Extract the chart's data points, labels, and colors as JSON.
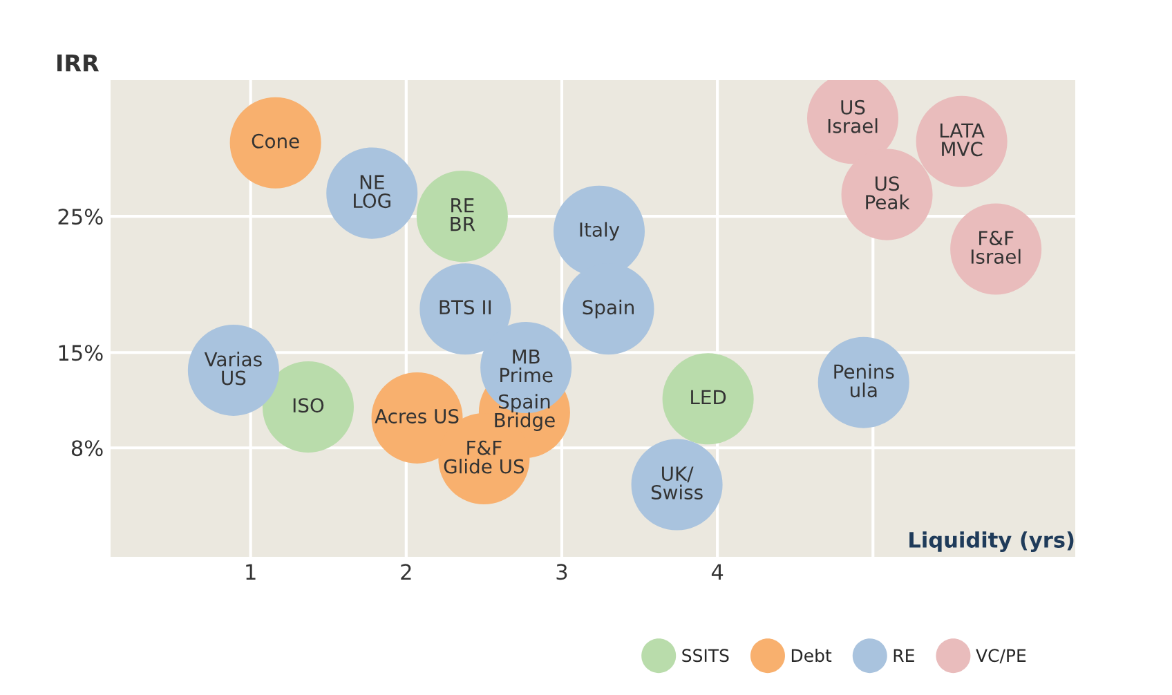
{
  "chart_data": {
    "type": "bubble",
    "ylabel": "IRR",
    "xlabel": "Liquidity (yrs)",
    "xlim": [
      0.1,
      6.3
    ],
    "xticks": [
      1,
      2,
      3,
      4,
      {
        "value": 5,
        "label": null
      }
    ],
    "ylim": [
      0,
      35
    ],
    "yticks": [
      {
        "value": 8,
        "label": "8%"
      },
      {
        "value": 15,
        "label": "15%"
      },
      {
        "value": 25,
        "label": "25%"
      }
    ],
    "grid": true,
    "legend": "bottom",
    "series": [
      {
        "name": "SSITS",
        "color": "#b9dcab",
        "x": [
          2.36,
          1.37,
          3.94
        ],
        "values": [
          25,
          11.0,
          11.6
        ],
        "sizes": [
          1,
          1,
          1
        ]
      },
      {
        "name": "Debt",
        "color": "#f8b06e",
        "x": [
          1.16,
          2.07,
          2.76,
          2.5
        ],
        "values": [
          30.4,
          10.2,
          10.6,
          7.2
        ],
        "sizes": [
          1,
          1,
          1,
          1
        ]
      },
      {
        "name": "RE",
        "color": "#a9c3de",
        "x": [
          1.78,
          3.24,
          2.38,
          3.3,
          0.89,
          2.77,
          3.74,
          4.94
        ],
        "values": [
          26.7,
          23.9,
          18.2,
          18.2,
          13.7,
          13.9,
          5.3,
          12.8
        ],
        "sizes": [
          1,
          1,
          1,
          1,
          1,
          1,
          1,
          1
        ]
      },
      {
        "name": "VC/PE",
        "color": "#e9bcbc",
        "x": [
          4.87,
          5.57,
          5.09,
          5.79
        ],
        "values": [
          32.2,
          30.5,
          26.6,
          22.6
        ],
        "sizes": [
          1,
          1,
          1,
          1
        ]
      }
    ],
    "annotations": [
      {
        "text": "RE\nBR",
        "x": 2.36,
        "y": 25
      },
      {
        "text": "ISO",
        "x": 1.37,
        "y": 11.0
      },
      {
        "text": "LED",
        "x": 3.94,
        "y": 11.6
      },
      {
        "text": "Cone",
        "x": 1.16,
        "y": 30.4
      },
      {
        "text": "Acres US",
        "x": 2.07,
        "y": 10.2
      },
      {
        "text": "Spain\nBridge",
        "x": 2.76,
        "y": 10.6
      },
      {
        "text": "F&F\nGlide US",
        "x": 2.5,
        "y": 7.2
      },
      {
        "text": "NE\nLOG",
        "x": 1.78,
        "y": 26.7
      },
      {
        "text": "Italy",
        "x": 3.24,
        "y": 23.9
      },
      {
        "text": "BTS II",
        "x": 2.38,
        "y": 18.2
      },
      {
        "text": "Spain",
        "x": 3.3,
        "y": 18.2
      },
      {
        "text": "Varias\nUS",
        "x": 0.89,
        "y": 13.7
      },
      {
        "text": "MB\nPrime",
        "x": 2.77,
        "y": 13.9
      },
      {
        "text": "UK/\nSwiss",
        "x": 3.74,
        "y": 5.3
      },
      {
        "text": "Penins\nula",
        "x": 4.94,
        "y": 12.8
      },
      {
        "text": "US\nIsrael",
        "x": 4.87,
        "y": 32.2
      },
      {
        "text": "LATA\nMVC",
        "x": 5.57,
        "y": 30.5
      },
      {
        "text": "US\nPeak",
        "x": 5.09,
        "y": 26.6
      },
      {
        "text": "F&F\nIsrael",
        "x": 5.79,
        "y": 22.6
      }
    ]
  }
}
